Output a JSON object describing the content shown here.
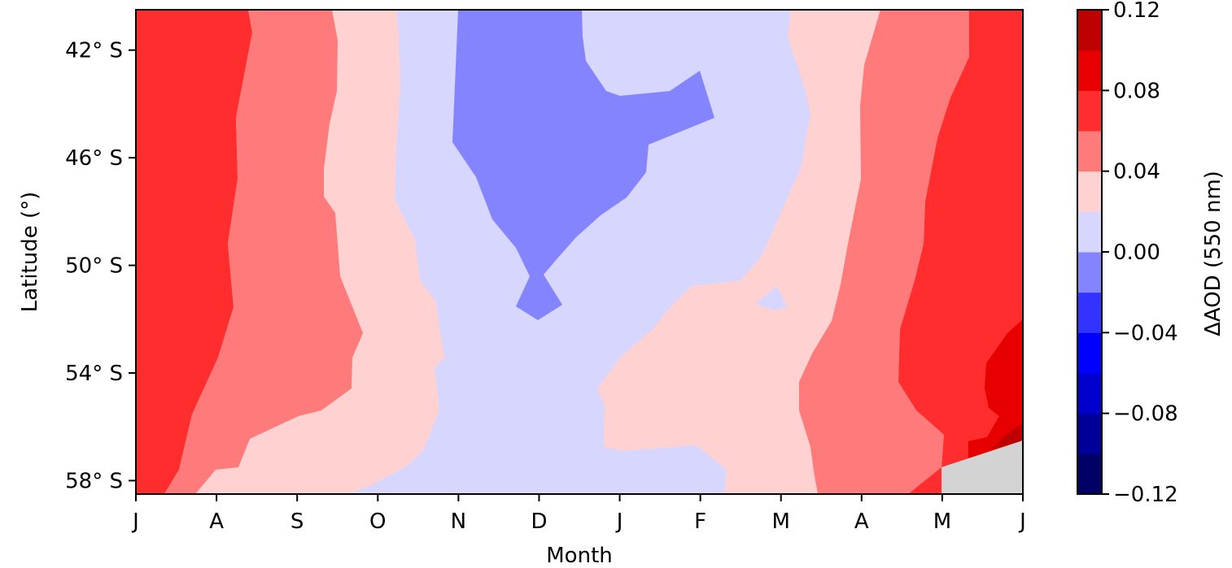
{
  "chart_data": {
    "type": "heatmap",
    "subtype": "filled-contour",
    "title": "",
    "xlabel": "Month",
    "ylabel": "Latitude (°)",
    "x_ticks": [
      "J",
      "A",
      "S",
      "O",
      "N",
      "D",
      "J",
      "F",
      "M",
      "A",
      "M",
      "J"
    ],
    "y_ticks": [
      "42° S",
      "46° S",
      "50° S",
      "54° S",
      "58° S"
    ],
    "y_tick_values": [
      -42,
      -46,
      -50,
      -54,
      -58
    ],
    "ylim": [
      -58.5,
      -40.5
    ],
    "colorbar": {
      "label": "ΔAOD (550 nm)",
      "range": [
        -0.12,
        0.12
      ],
      "tick_values": [
        -0.12,
        -0.08,
        -0.04,
        0.0,
        0.04,
        0.08,
        0.12
      ],
      "tick_labels": [
        "−0.12",
        "−0.08",
        "−0.04",
        "0.00",
        "0.04",
        "0.08",
        "0.12"
      ],
      "levels": [
        -0.12,
        -0.1,
        -0.08,
        -0.06,
        -0.04,
        -0.02,
        0.0,
        0.02,
        0.04,
        0.06,
        0.08,
        0.1,
        0.12
      ],
      "colors": [
        "#000066",
        "#000099",
        "#0000cc",
        "#0000ff",
        "#3333ff",
        "#8484ff",
        "#d6d6ff",
        "#ffd1d1",
        "#ff7b7b",
        "#ff2d2d",
        "#e60000",
        "#bd0000",
        "#8a0000"
      ]
    },
    "masked_color": "#d3d3d3"
  }
}
